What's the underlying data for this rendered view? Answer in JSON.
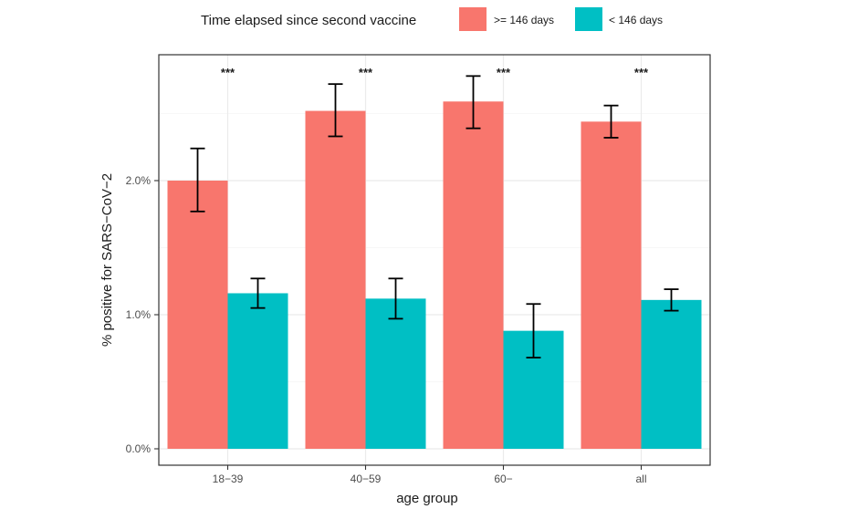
{
  "chart_data": {
    "type": "bar",
    "title": "",
    "xlabel": "age group",
    "ylabel": "% positive for SARS−CoV−2",
    "categories": [
      "18−39",
      "40−59",
      "60−",
      "all"
    ],
    "legend": {
      "title": "Time elapsed since second vaccine",
      "position": "top"
    },
    "series": [
      {
        "name": ">= 146 days",
        "color": "#F8766D",
        "values": [
          2.0,
          2.52,
          2.59,
          2.44
        ],
        "err_low": [
          1.77,
          2.33,
          2.39,
          2.32
        ],
        "err_high": [
          2.24,
          2.72,
          2.78,
          2.56
        ]
      },
      {
        "name": "< 146 days",
        "color": "#00BFC4",
        "values": [
          1.16,
          1.12,
          0.88,
          1.11
        ],
        "err_low": [
          1.05,
          0.97,
          0.68,
          1.03
        ],
        "err_high": [
          1.27,
          1.27,
          1.08,
          1.19
        ]
      }
    ],
    "significance": [
      "***",
      "***",
      "***",
      "***"
    ],
    "ylim": [
      0,
      2.95
    ],
    "yticks": [
      0,
      1.0,
      2.0
    ],
    "ytick_labels": [
      "0.0%",
      "1.0%",
      "2.0%"
    ],
    "grid": true
  }
}
